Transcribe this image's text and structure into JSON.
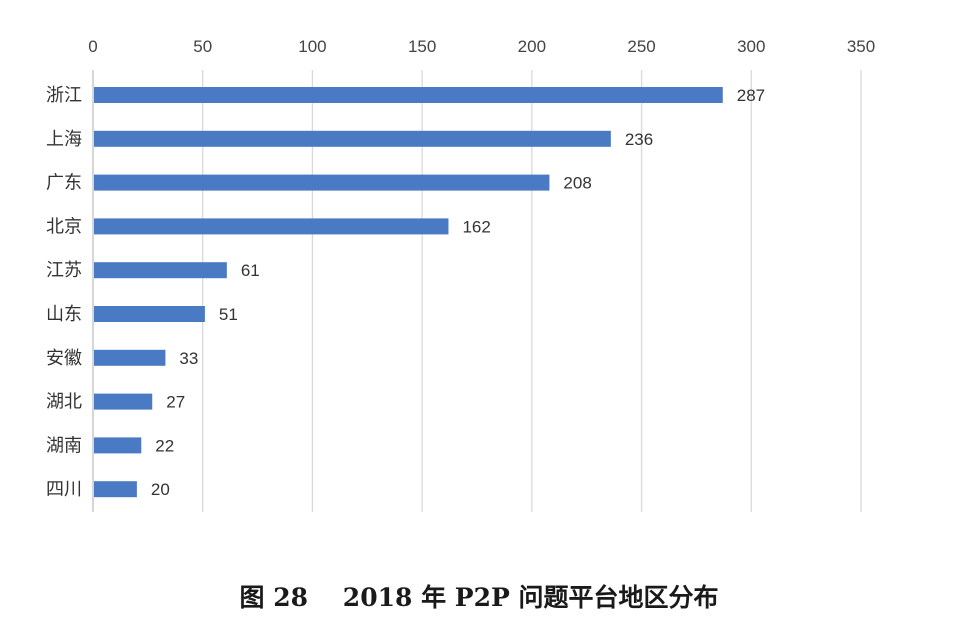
{
  "chart_data": {
    "type": "bar",
    "orientation": "horizontal",
    "categories": [
      "浙江",
      "上海",
      "广东",
      "北京",
      "江苏",
      "山东",
      "安徽",
      "湖北",
      "湖南",
      "四川"
    ],
    "values": [
      287,
      236,
      208,
      162,
      61,
      51,
      33,
      27,
      22,
      20
    ],
    "data_labels": [
      "287",
      "236",
      "208",
      "162",
      "61",
      "51",
      "33",
      "27",
      "22",
      "20"
    ],
    "x_ticks": [
      "0",
      "50",
      "100",
      "150",
      "200",
      "250",
      "300",
      "350"
    ],
    "xlim": [
      0,
      350
    ],
    "x_axis_position": "top",
    "grid": true,
    "bar_color": "#4a7ac4",
    "grid_color": "#d9d9d9"
  },
  "caption": "图 28    2018 年 P2P 问题平台地区分布"
}
